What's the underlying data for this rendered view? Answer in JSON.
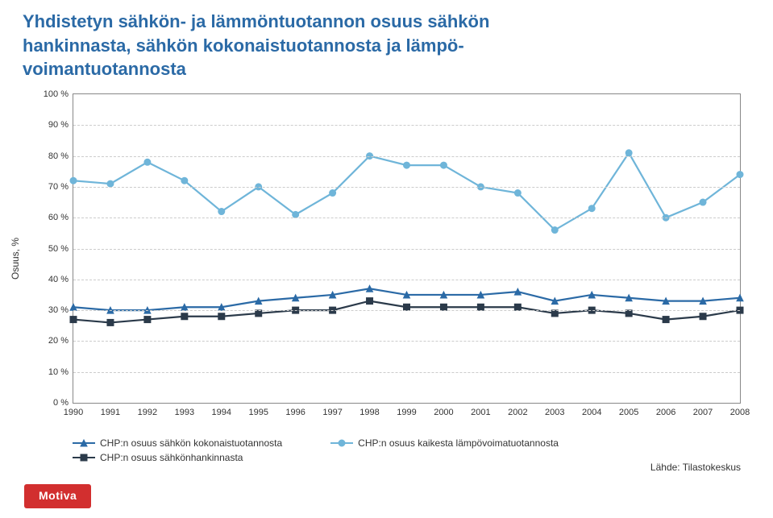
{
  "title_line1": "Yhdistetyn sähkön- ja lämmöntuotannon osuus sähkön",
  "title_line2": "hankinnasta, sähkön kokonaistuotannosta ja lämpö-",
  "title_line3": "voimantuotannosta",
  "y_axis_title": "Osuus, %",
  "source": "Lähde: Tilastokeskus",
  "logo": "Motiva",
  "chart": {
    "type": "line",
    "ylim": [
      0,
      100
    ],
    "ytick_step": 10,
    "ytick_suffix": " %",
    "years": [
      1990,
      1991,
      1992,
      1993,
      1994,
      1995,
      1996,
      1997,
      1998,
      1999,
      2000,
      2001,
      2002,
      2003,
      2004,
      2005,
      2006,
      2007,
      2008
    ],
    "grid_color": "#cccccc",
    "border_color": "#888888",
    "background_color": "#ffffff",
    "series": [
      {
        "id": "kokonaistuotannosta",
        "label": "CHP:n osuus sähkön kokonaistuotannosta",
        "color": "#2b6aa6",
        "marker": "triangle",
        "values": [
          31,
          30,
          30,
          31,
          31,
          33,
          34,
          35,
          37,
          35,
          35,
          35,
          36,
          33,
          35,
          34,
          33,
          33,
          34
        ]
      },
      {
        "id": "lampovoimatuotannosta",
        "label": "CHP:n osuus kaikesta lämpövoimatuotannosta",
        "color": "#6fb5d9",
        "marker": "circle",
        "values": [
          72,
          71,
          78,
          72,
          62,
          70,
          61,
          68,
          80,
          77,
          77,
          70,
          68,
          56,
          63,
          81,
          60,
          65,
          74
        ]
      },
      {
        "id": "sahkonhankinnasta",
        "label": "CHP:n osuus sähkönhankinnasta",
        "color": "#2b3a4a",
        "marker": "square",
        "values": [
          27,
          26,
          27,
          28,
          28,
          29,
          30,
          30,
          33,
          31,
          31,
          31,
          31,
          29,
          30,
          29,
          27,
          28,
          30
        ]
      }
    ],
    "legend_layout": [
      [
        "kokonaistuotannosta",
        "lampovoimatuotannosta"
      ],
      [
        "sahkonhankinnasta"
      ]
    ]
  }
}
